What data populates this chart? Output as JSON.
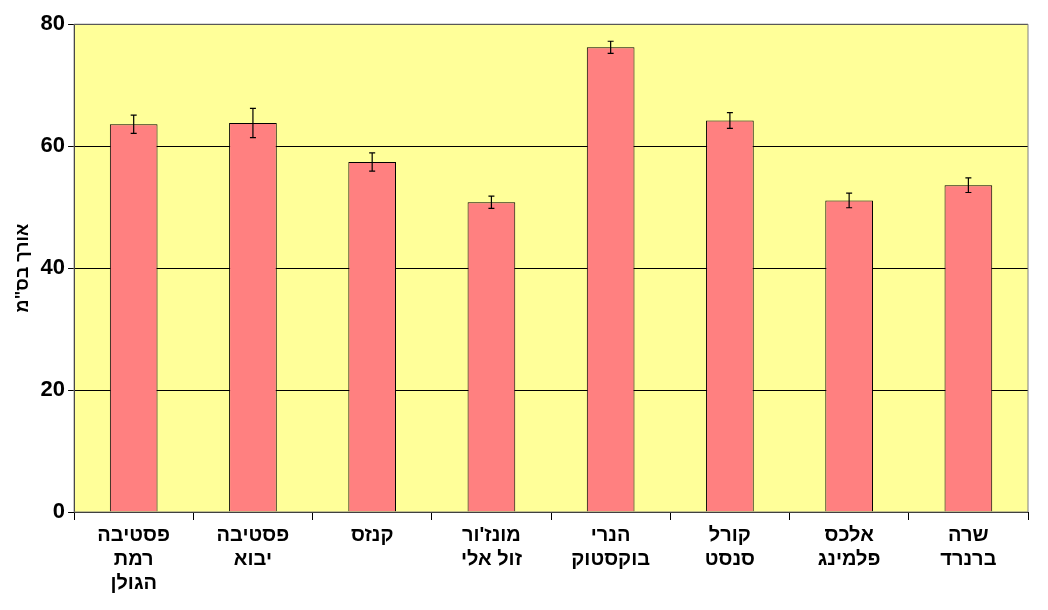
{
  "chart_data": {
    "type": "bar",
    "ylabel": "אורך בס\"מ",
    "categories": [
      "פסטיבה רמת הגולן",
      "פסטיבה יבוא",
      "קנזס",
      "מונז'ור זול אלי",
      "הנרי בוקסטוק",
      "קורל סנסט",
      "אלכס פלמינג",
      "שרה ברנרד"
    ],
    "values": [
      63.6,
      63.8,
      57.4,
      50.8,
      76.2,
      64.2,
      51.1,
      53.6
    ],
    "errors": [
      1.5,
      2.4,
      1.5,
      1,
      1,
      1.3,
      1.2,
      1.2
    ],
    "color": "#ff8080",
    "ylim": [
      0,
      80
    ],
    "yticks": [
      0,
      20,
      40,
      60,
      80
    ],
    "grid": "y",
    "legend": false
  }
}
